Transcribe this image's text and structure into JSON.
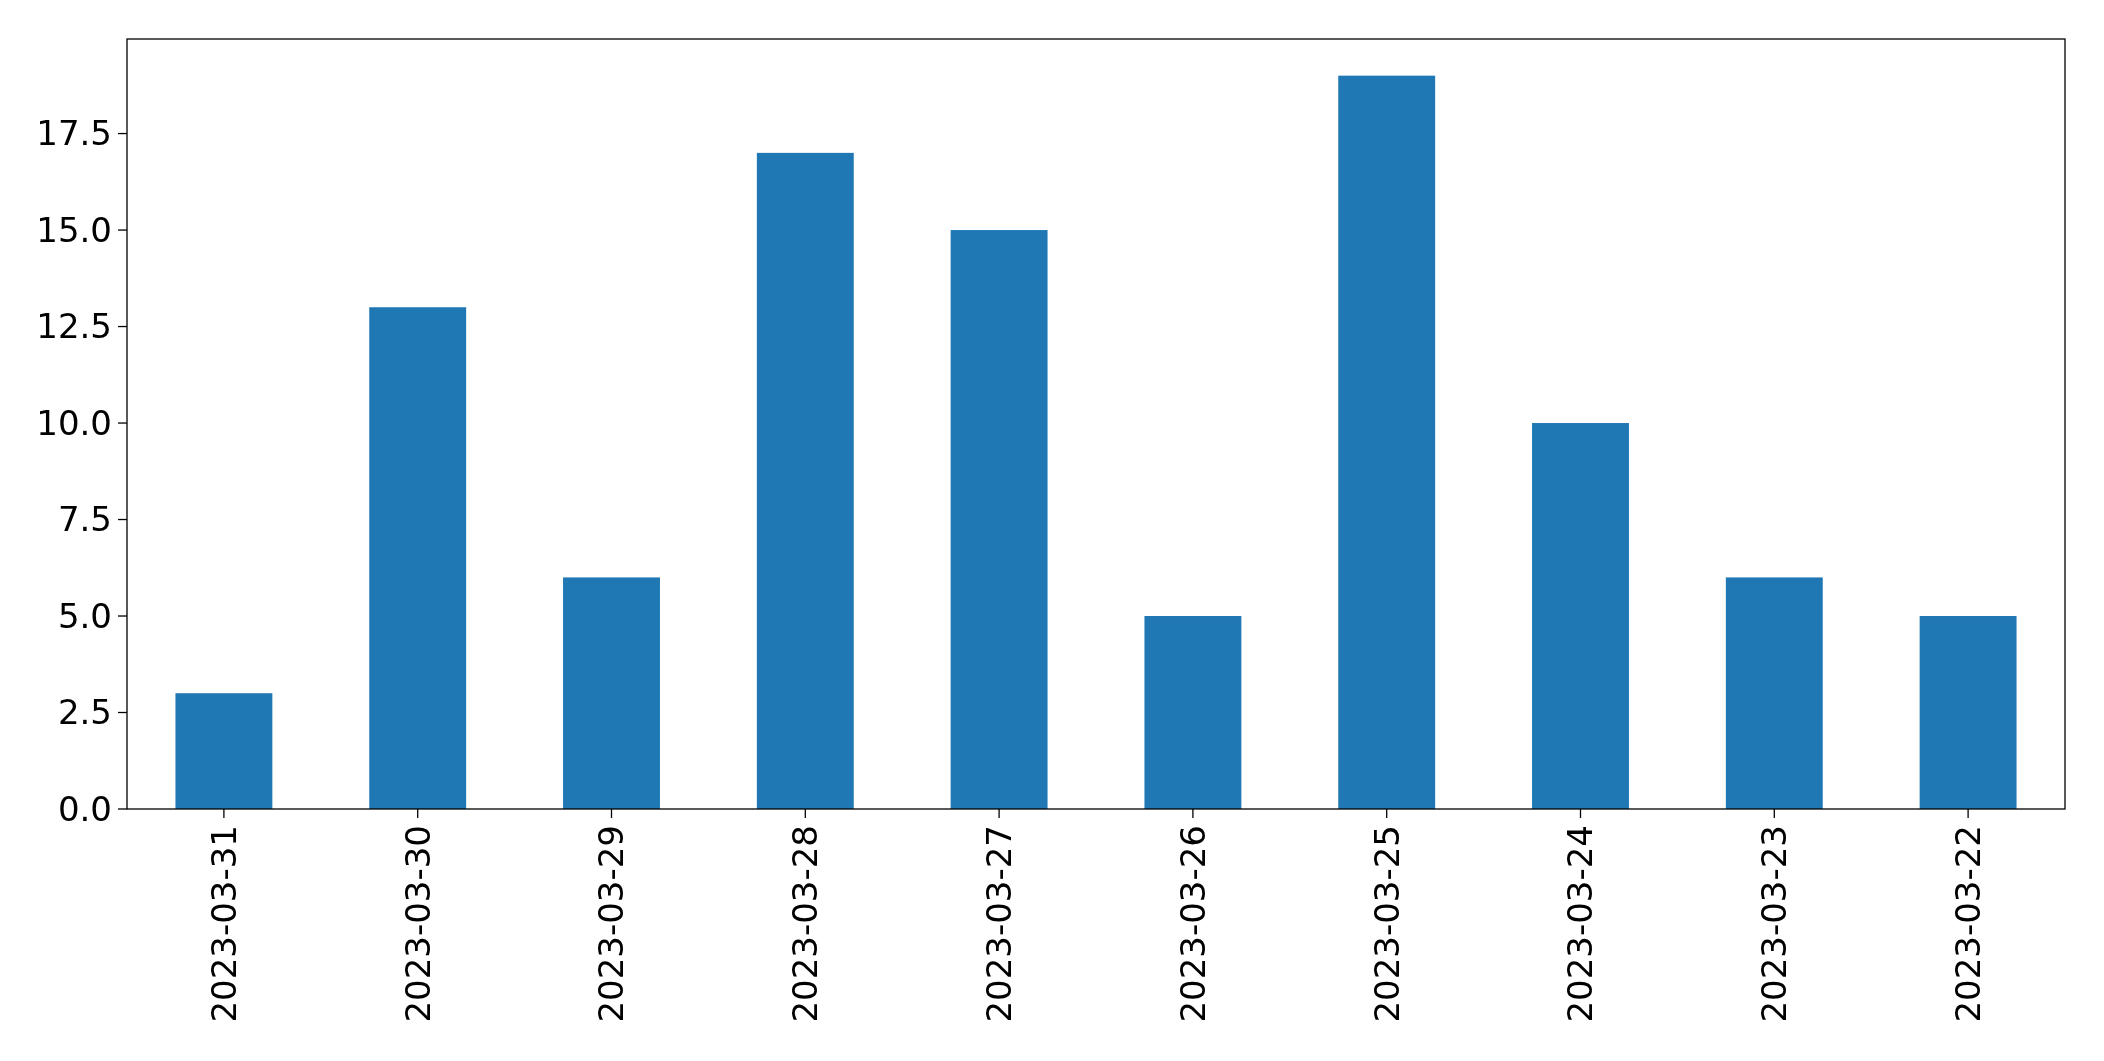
{
  "chart_data": {
    "type": "bar",
    "categories": [
      "2023-03-31",
      "2023-03-30",
      "2023-03-29",
      "2023-03-28",
      "2023-03-27",
      "2023-03-26",
      "2023-03-25",
      "2023-03-24",
      "2023-03-23",
      "2023-03-22"
    ],
    "values": [
      3,
      13,
      6,
      17,
      15,
      5,
      19,
      10,
      6,
      5
    ],
    "color": "#1f77b4",
    "ylim": [
      0,
      19.95
    ],
    "yticks": [
      {
        "value": 0,
        "label": "0.0"
      },
      {
        "value": 2.5,
        "label": "2.5"
      },
      {
        "value": 5,
        "label": "5.0"
      },
      {
        "value": 7.5,
        "label": "7.5"
      },
      {
        "value": 10,
        "label": "10.0"
      },
      {
        "value": 12.5,
        "label": "12.5"
      },
      {
        "value": 15,
        "label": "15.0"
      },
      {
        "value": 17.5,
        "label": "17.5"
      }
    ],
    "grid": false
  }
}
